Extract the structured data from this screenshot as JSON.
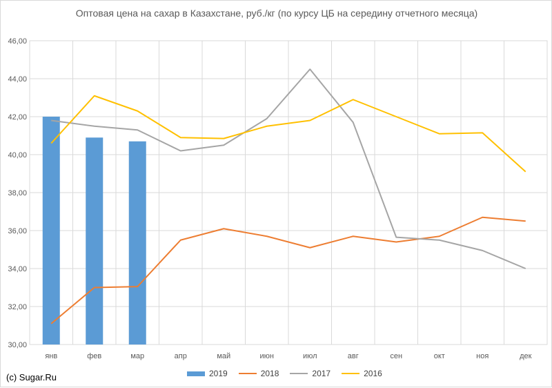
{
  "chart_data": {
    "type": "bar+line",
    "title": "Оптовая цена на сахар в Казахстане, руб./кг (по курсу ЦБ на середину отчетного месяца)",
    "categories": [
      "янв",
      "фев",
      "мар",
      "апр",
      "май",
      "июн",
      "июл",
      "авг",
      "сен",
      "окт",
      "ноя",
      "дек"
    ],
    "ylim": [
      30,
      46
    ],
    "yticks": [
      "30,00",
      "32,00",
      "34,00",
      "36,00",
      "38,00",
      "40,00",
      "42,00",
      "44,00",
      "46,00"
    ],
    "grid": true,
    "legend_position": "bottom",
    "series": [
      {
        "name": "2019",
        "kind": "bar",
        "color": "#5b9bd5",
        "values": [
          42.0,
          40.9,
          40.7,
          null,
          null,
          null,
          null,
          null,
          null,
          null,
          null,
          null
        ]
      },
      {
        "name": "2018",
        "kind": "line",
        "color": "#ed7d31",
        "values": [
          31.1,
          33.0,
          33.05,
          35.5,
          36.1,
          35.7,
          35.1,
          35.7,
          35.4,
          35.7,
          36.7,
          36.5
        ]
      },
      {
        "name": "2017",
        "kind": "line",
        "color": "#a5a5a5",
        "values": [
          41.8,
          41.5,
          41.3,
          40.2,
          40.5,
          41.9,
          44.5,
          41.7,
          35.65,
          35.5,
          34.95,
          34.0
        ]
      },
      {
        "name": "2016",
        "kind": "line",
        "color": "#ffc000",
        "values": [
          40.6,
          43.1,
          42.3,
          40.9,
          40.85,
          41.5,
          41.8,
          42.9,
          42.0,
          41.1,
          41.15,
          39.1
        ]
      }
    ]
  },
  "credit": "(c) Sugar.Ru"
}
